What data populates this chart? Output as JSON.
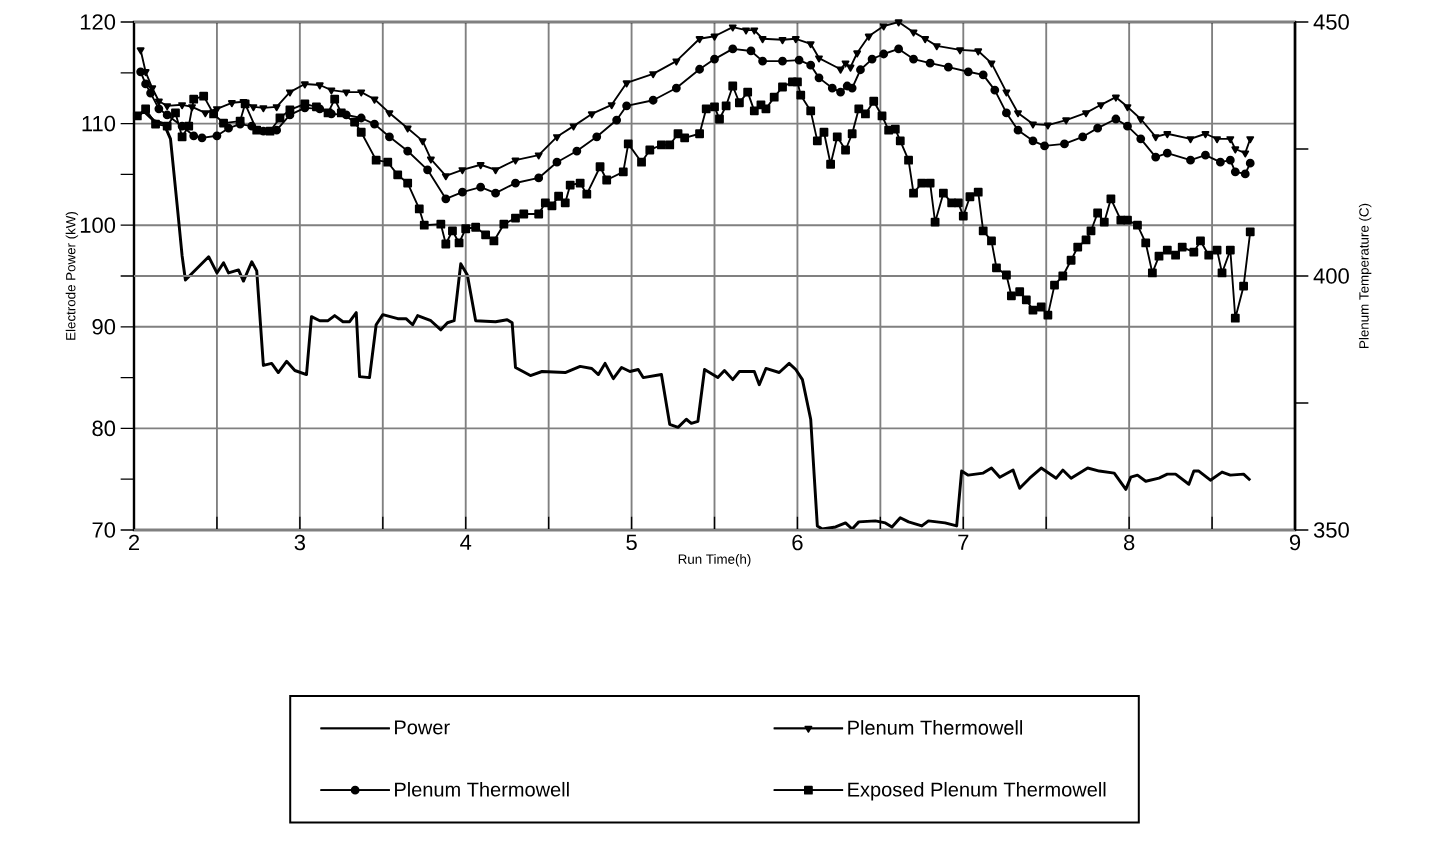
{
  "chart_data": {
    "type": "line",
    "xlabel": "Run Time(h)",
    "ylabel": "Electrode Power (kW)",
    "y2label": "Plenum Temperature (C)",
    "xlim": [
      2,
      9
    ],
    "ylim": [
      70,
      120
    ],
    "y2lim": [
      350,
      450
    ],
    "xticks": [
      2,
      {
        "value": 2.5,
        "label": null
      },
      3,
      {
        "value": 3.5,
        "label": null
      },
      4,
      {
        "value": 4.5,
        "label": null
      },
      5,
      {
        "value": 5.5,
        "label": null
      },
      6,
      {
        "value": 6.5,
        "label": null
      },
      7,
      {
        "value": 7.5,
        "label": null
      },
      8,
      {
        "value": 8.5,
        "label": null
      },
      9
    ],
    "yticks": [
      70,
      {
        "value": 75,
        "label": null
      },
      80,
      {
        "value": 85,
        "label": null
      },
      90,
      {
        "value": 95,
        "label": null
      },
      100,
      {
        "value": 105,
        "label": null
      },
      110,
      {
        "value": 115,
        "label": null
      },
      120
    ],
    "y2ticks": [
      350,
      {
        "value": 375,
        "label": null
      },
      400,
      {
        "value": 425,
        "label": null
      },
      450
    ],
    "grid": true,
    "legend": "bottom",
    "line_style": "solid",
    "series": [
      {
        "name": "Power",
        "color": "#000000",
        "marker": "none",
        "x": [
          2.0,
          2.06,
          2.12,
          2.18,
          2.22,
          2.26,
          2.29,
          2.31,
          2.45,
          2.5,
          2.54,
          2.57,
          2.63,
          2.66,
          2.71,
          2.74,
          2.78,
          2.83,
          2.87,
          2.92,
          2.97,
          3.04,
          3.07,
          3.12,
          3.17,
          3.21,
          3.26,
          3.3,
          3.34,
          3.36,
          3.42,
          3.46,
          3.5,
          3.59,
          3.64,
          3.68,
          3.71,
          3.79,
          3.85,
          3.89,
          3.93,
          3.97,
          4.01,
          4.06,
          4.18,
          4.25,
          4.28,
          4.3,
          4.39,
          4.46,
          4.6,
          4.69,
          4.76,
          4.8,
          4.84,
          4.89,
          4.94,
          4.99,
          5.04,
          5.07,
          5.18,
          5.23,
          5.28,
          5.33,
          5.36,
          5.4,
          5.44,
          5.52,
          5.56,
          5.61,
          5.65,
          5.74,
          5.77,
          5.81,
          5.89,
          5.95,
          5.99,
          6.03,
          6.08,
          6.12,
          6.15,
          6.23,
          6.29,
          6.33,
          6.37,
          6.47,
          6.53,
          6.57,
          6.62,
          6.67,
          6.75,
          6.79,
          6.89,
          6.96,
          6.99,
          7.03,
          7.12,
          7.17,
          7.22,
          7.3,
          7.34,
          7.4,
          7.47,
          7.56,
          7.6,
          7.65,
          7.75,
          7.82,
          7.91,
          7.98,
          8.01,
          8.05,
          8.1,
          8.18,
          8.23,
          8.28,
          8.36,
          8.39,
          8.42,
          8.49,
          8.56,
          8.61,
          8.69,
          8.73
        ],
        "values": [
          110.5,
          111.2,
          110.3,
          110.0,
          108.5,
          102.0,
          97.0,
          94.6,
          96.9,
          95.3,
          96.3,
          95.3,
          95.6,
          94.5,
          96.4,
          95.5,
          86.2,
          86.4,
          85.5,
          86.6,
          85.7,
          85.3,
          91.0,
          90.6,
          90.6,
          91.1,
          90.5,
          90.5,
          91.4,
          85.1,
          85.0,
          90.2,
          91.2,
          90.8,
          90.8,
          90.2,
          91.1,
          90.6,
          89.7,
          90.4,
          90.6,
          96.2,
          95.1,
          90.6,
          90.5,
          90.7,
          90.4,
          86.0,
          85.2,
          85.6,
          85.5,
          86.1,
          85.9,
          85.3,
          86.4,
          84.9,
          86.0,
          85.6,
          85.8,
          85.0,
          85.3,
          80.4,
          80.1,
          80.9,
          80.5,
          80.7,
          85.8,
          85.0,
          85.7,
          84.8,
          85.6,
          85.6,
          84.3,
          85.9,
          85.5,
          86.4,
          85.8,
          84.8,
          80.9,
          70.4,
          70.1,
          70.3,
          70.7,
          70.1,
          70.8,
          70.9,
          70.7,
          70.3,
          71.2,
          70.8,
          70.4,
          70.9,
          70.7,
          70.4,
          75.8,
          75.4,
          75.6,
          76.1,
          75.2,
          75.9,
          74.1,
          75.1,
          76.1,
          75.1,
          75.9,
          75.1,
          76.1,
          75.8,
          75.6,
          74.0,
          75.2,
          75.4,
          74.8,
          75.1,
          75.5,
          75.5,
          74.5,
          75.8,
          75.8,
          74.9,
          75.7,
          75.4,
          75.5,
          74.9
        ]
      },
      {
        "name": "Plenum Thermowell",
        "color": "#000000",
        "marker": "triangle",
        "axis": "y2",
        "x": [
          2.04,
          2.07,
          2.11,
          2.15,
          2.2,
          2.29,
          2.35,
          2.43,
          2.5,
          2.59,
          2.66,
          2.72,
          2.78,
          2.86,
          2.94,
          3.03,
          3.12,
          3.19,
          3.28,
          3.37,
          3.45,
          3.54,
          3.65,
          3.74,
          3.79,
          3.88,
          3.98,
          4.09,
          4.18,
          4.3,
          4.44,
          4.55,
          4.65,
          4.76,
          4.88,
          4.97,
          5.13,
          5.27,
          5.41,
          5.5,
          5.61,
          5.69,
          5.74,
          5.79,
          5.91,
          5.99,
          6.08,
          6.13,
          6.26,
          6.29,
          6.32,
          6.36,
          6.43,
          6.52,
          6.61,
          6.7,
          6.77,
          6.84,
          6.98,
          7.09,
          7.17,
          7.26,
          7.33,
          7.42,
          7.51,
          7.62,
          7.74,
          7.83,
          7.92,
          7.99,
          8.07,
          8.16,
          8.23,
          8.37,
          8.46,
          8.53,
          8.61,
          8.64,
          8.7,
          8.73
        ],
        "values": [
          444.5,
          440.2,
          437.0,
          434.4,
          433.5,
          433.7,
          433.3,
          432.1,
          432.9,
          434.1,
          434.3,
          433.3,
          433.1,
          433.3,
          436.2,
          437.8,
          437.6,
          436.6,
          436.2,
          436.2,
          434.8,
          432.1,
          429.1,
          426.6,
          423.0,
          419.7,
          420.9,
          421.9,
          420.9,
          422.8,
          423.8,
          427.4,
          429.5,
          431.9,
          433.7,
          438.0,
          439.8,
          442.3,
          446.7,
          447.2,
          449.0,
          448.4,
          448.4,
          446.7,
          446.5,
          446.7,
          445.7,
          442.9,
          440.7,
          441.9,
          441.1,
          443.9,
          447.2,
          449.2,
          450.0,
          448.0,
          446.7,
          445.3,
          444.5,
          444.3,
          441.9,
          436.2,
          432.1,
          429.9,
          429.7,
          430.7,
          432.1,
          433.7,
          435.2,
          433.3,
          430.9,
          427.4,
          428.0,
          427.0,
          428.0,
          427.0,
          427.0,
          425.0,
          424.2,
          427.0
        ]
      },
      {
        "name": "Plenum Thermowell",
        "color": "#000000",
        "marker": "circle",
        "axis": "y2",
        "x": [
          2.04,
          2.07,
          2.1,
          2.15,
          2.2,
          2.29,
          2.36,
          2.41,
          2.5,
          2.57,
          2.64,
          2.71,
          2.78,
          2.86,
          2.94,
          3.03,
          3.12,
          3.19,
          3.28,
          3.37,
          3.45,
          3.54,
          3.65,
          3.77,
          3.88,
          3.98,
          4.09,
          4.18,
          4.3,
          4.44,
          4.55,
          4.67,
          4.79,
          4.91,
          4.97,
          5.13,
          5.27,
          5.41,
          5.5,
          5.61,
          5.72,
          5.79,
          5.91,
          6.01,
          6.08,
          6.13,
          6.21,
          6.26,
          6.3,
          6.33,
          6.38,
          6.45,
          6.52,
          6.61,
          6.7,
          6.8,
          6.91,
          7.03,
          7.12,
          7.19,
          7.26,
          7.33,
          7.42,
          7.49,
          7.61,
          7.72,
          7.81,
          7.92,
          7.99,
          8.07,
          8.16,
          8.23,
          8.37,
          8.46,
          8.55,
          8.61,
          8.64,
          8.7,
          8.73
        ],
        "values": [
          440.2,
          437.8,
          436.0,
          432.9,
          431.7,
          429.5,
          427.6,
          427.2,
          427.6,
          429.1,
          429.9,
          429.5,
          428.5,
          428.7,
          431.7,
          433.1,
          432.9,
          431.9,
          431.7,
          431.1,
          429.9,
          427.4,
          424.6,
          420.9,
          415.2,
          416.5,
          417.5,
          416.3,
          418.3,
          419.3,
          422.4,
          424.6,
          427.4,
          430.7,
          433.5,
          434.6,
          437.0,
          440.7,
          442.7,
          444.7,
          444.3,
          442.3,
          442.3,
          442.5,
          441.5,
          439.0,
          437.0,
          436.2,
          437.4,
          437.0,
          440.6,
          442.7,
          443.7,
          444.7,
          442.7,
          441.9,
          441.1,
          440.2,
          439.6,
          436.6,
          432.1,
          428.7,
          426.6,
          425.6,
          426.0,
          427.4,
          429.1,
          430.9,
          429.5,
          427.0,
          423.4,
          424.2,
          422.8,
          423.8,
          422.4,
          422.8,
          420.5,
          420.1,
          422.2
        ]
      },
      {
        "name": "Exposed Plenum Thermowell",
        "color": "#000000",
        "marker": "square",
        "axis": "y2",
        "x": [
          2.02,
          2.07,
          2.13,
          2.2,
          2.25,
          2.29,
          2.33,
          2.36,
          2.42,
          2.48,
          2.54,
          2.64,
          2.67,
          2.74,
          2.82,
          2.88,
          2.94,
          3.03,
          3.1,
          3.17,
          3.21,
          3.25,
          3.33,
          3.37,
          3.46,
          3.53,
          3.59,
          3.65,
          3.72,
          3.75,
          3.85,
          3.88,
          3.92,
          3.96,
          4.0,
          4.06,
          4.12,
          4.17,
          4.23,
          4.3,
          4.35,
          4.44,
          4.48,
          4.52,
          4.56,
          4.6,
          4.63,
          4.69,
          4.73,
          4.81,
          4.85,
          4.95,
          4.98,
          5.06,
          5.11,
          5.18,
          5.23,
          5.28,
          5.32,
          5.41,
          5.45,
          5.5,
          5.53,
          5.57,
          5.61,
          5.65,
          5.7,
          5.74,
          5.78,
          5.81,
          5.86,
          5.91,
          5.97,
          6.0,
          6.02,
          6.08,
          6.12,
          6.16,
          6.2,
          6.24,
          6.29,
          6.33,
          6.37,
          6.41,
          6.46,
          6.51,
          6.55,
          6.59,
          6.62,
          6.67,
          6.7,
          6.75,
          6.8,
          6.83,
          6.88,
          6.93,
          6.97,
          7.0,
          7.04,
          7.09,
          7.12,
          7.17,
          7.2,
          7.26,
          7.29,
          7.34,
          7.38,
          7.42,
          7.47,
          7.51,
          7.55,
          7.6,
          7.65,
          7.69,
          7.74,
          7.77,
          7.81,
          7.85,
          7.89,
          7.95,
          7.99,
          8.05,
          8.1,
          8.14,
          8.18,
          8.23,
          8.28,
          8.32,
          8.39,
          8.43,
          8.48,
          8.53,
          8.56,
          8.61,
          8.64,
          8.69,
          8.73
        ],
        "values": [
          431.5,
          432.9,
          429.9,
          429.5,
          432.1,
          427.4,
          429.5,
          434.8,
          435.4,
          431.9,
          430.1,
          430.5,
          433.9,
          428.7,
          428.5,
          431.1,
          432.7,
          433.9,
          433.3,
          432.1,
          434.8,
          432.1,
          430.3,
          428.3,
          422.8,
          422.4,
          419.9,
          418.3,
          413.2,
          410.0,
          410.2,
          406.3,
          408.9,
          406.5,
          409.3,
          409.6,
          408.1,
          406.9,
          410.2,
          411.4,
          412.2,
          412.2,
          414.4,
          413.8,
          415.7,
          414.4,
          417.9,
          418.3,
          416.1,
          421.5,
          418.9,
          420.5,
          426.0,
          422.4,
          424.8,
          425.8,
          425.8,
          428.0,
          427.2,
          428.0,
          432.9,
          433.3,
          430.9,
          433.5,
          437.4,
          434.1,
          436.2,
          432.5,
          433.7,
          432.9,
          435.2,
          437.2,
          438.2,
          438.2,
          435.6,
          432.5,
          426.6,
          428.3,
          422.0,
          427.4,
          424.8,
          428.0,
          432.9,
          431.9,
          434.4,
          431.5,
          428.7,
          428.9,
          426.6,
          422.8,
          416.3,
          418.3,
          418.3,
          410.6,
          416.3,
          414.4,
          414.4,
          411.8,
          415.6,
          416.5,
          408.9,
          406.9,
          401.6,
          400.2,
          396.1,
          396.9,
          395.3,
          393.3,
          393.9,
          392.3,
          398.2,
          400.0,
          403.1,
          405.7,
          407.1,
          408.9,
          412.4,
          410.6,
          415.2,
          411.0,
          411.0,
          410.0,
          406.5,
          400.6,
          403.9,
          405.1,
          404.1,
          405.7,
          404.7,
          406.9,
          404.1,
          405.1,
          400.6,
          405.1,
          391.7,
          398.0,
          408.7
        ]
      }
    ]
  }
}
